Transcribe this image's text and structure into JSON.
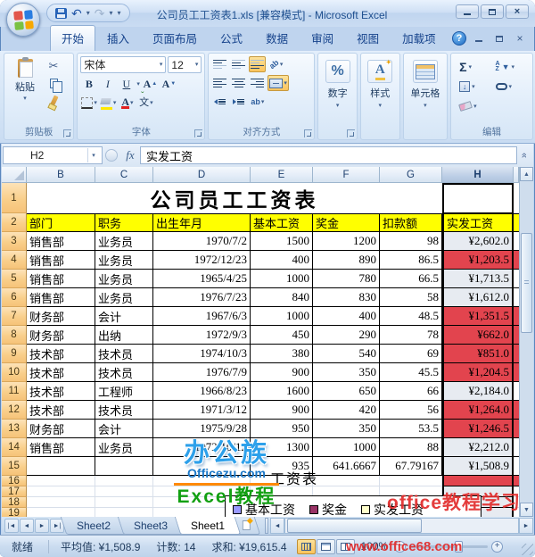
{
  "window": {
    "title": "公司员工工资表1.xls [兼容模式] - Microsoft Excel"
  },
  "ribbon_tabs": [
    {
      "label": "开始",
      "active": true
    },
    {
      "label": "插入"
    },
    {
      "label": "页面布局"
    },
    {
      "label": "公式"
    },
    {
      "label": "数据"
    },
    {
      "label": "审阅"
    },
    {
      "label": "视图"
    },
    {
      "label": "加载项"
    }
  ],
  "ribbon": {
    "clipboard": {
      "label": "剪贴板",
      "paste": "粘贴"
    },
    "font": {
      "label": "字体",
      "name": "宋体",
      "size": "12"
    },
    "alignment": {
      "label": "对齐方式"
    },
    "number": {
      "label": "数字"
    },
    "styles": {
      "label": "样式"
    },
    "cells": {
      "label": "单元格"
    },
    "editing": {
      "label": "编辑"
    }
  },
  "formula_bar": {
    "name_box": "H2",
    "fx": "fx",
    "content": "实发工资"
  },
  "sheet": {
    "columns": [
      "B",
      "C",
      "D",
      "E",
      "F",
      "G",
      "H"
    ],
    "selected_column": "H",
    "title": "公司员工工资表",
    "headers": [
      "部门",
      "职务",
      "出生年月",
      "基本工资",
      "奖金",
      "扣款额",
      "实发工资"
    ],
    "grid_rows": [
      {
        "n": "1",
        "kind": "title"
      },
      {
        "n": "2",
        "kind": "header"
      },
      {
        "n": "3",
        "kind": "data",
        "cells": [
          "销售部",
          "业务员",
          "1970/7/2",
          "1500",
          "1200",
          "98",
          "¥2,602.0"
        ],
        "net_red": false
      },
      {
        "n": "4",
        "kind": "data",
        "cells": [
          "销售部",
          "业务员",
          "1972/12/23",
          "400",
          "890",
          "86.5",
          "¥1,203.5"
        ],
        "net_red": true
      },
      {
        "n": "5",
        "kind": "data",
        "cells": [
          "销售部",
          "业务员",
          "1965/4/25",
          "1000",
          "780",
          "66.5",
          "¥1,713.5"
        ],
        "net_red": false
      },
      {
        "n": "6",
        "kind": "data",
        "cells": [
          "销售部",
          "业务员",
          "1976/7/23",
          "840",
          "830",
          "58",
          "¥1,612.0"
        ],
        "net_red": false
      },
      {
        "n": "7",
        "kind": "data",
        "cells": [
          "财务部",
          "会计",
          "1967/6/3",
          "1000",
          "400",
          "48.5",
          "¥1,351.5"
        ],
        "net_red": true
      },
      {
        "n": "8",
        "kind": "data",
        "cells": [
          "财务部",
          "出纳",
          "1972/9/3",
          "450",
          "290",
          "78",
          "¥662.0"
        ],
        "net_red": true
      },
      {
        "n": "9",
        "kind": "data",
        "cells": [
          "技术部",
          "技术员",
          "1974/10/3",
          "380",
          "540",
          "69",
          "¥851.0"
        ],
        "net_red": true
      },
      {
        "n": "10",
        "kind": "data",
        "cells": [
          "技术部",
          "技术员",
          "1976/7/9",
          "900",
          "350",
          "45.5",
          "¥1,204.5"
        ],
        "net_red": true
      },
      {
        "n": "11",
        "kind": "data",
        "cells": [
          "技术部",
          "工程师",
          "1966/8/23",
          "1600",
          "650",
          "66",
          "¥2,184.0"
        ],
        "net_red": false
      },
      {
        "n": "12",
        "kind": "data",
        "cells": [
          "技术部",
          "技术员",
          "1971/3/12",
          "900",
          "420",
          "56",
          "¥1,264.0"
        ],
        "net_red": true
      },
      {
        "n": "13",
        "kind": "data",
        "cells": [
          "财务部",
          "会计",
          "1975/9/28",
          "950",
          "350",
          "53.5",
          "¥1,246.5"
        ],
        "net_red": true
      },
      {
        "n": "14",
        "kind": "data",
        "cells": [
          "销售部",
          "业务员",
          "1972/10/12",
          "1300",
          "1000",
          "88",
          "¥2,212.0"
        ],
        "net_red": false
      },
      {
        "n": "15",
        "kind": "data",
        "cells": [
          "",
          "",
          "",
          "935",
          "641.6667",
          "67.79167",
          "¥1,508.9"
        ],
        "net_red": false
      },
      {
        "n": "16",
        "kind": "empty",
        "net_red": true
      },
      {
        "n": "17",
        "kind": "empty"
      },
      {
        "n": "18",
        "kind": "empty"
      },
      {
        "n": "19",
        "kind": "empty"
      }
    ]
  },
  "colors": {
    "header_fill": "#ffff00",
    "conditional_red_fill": "#e2444e",
    "selection_tint": "#e7ebf1"
  },
  "watermarks": {
    "officezu": {
      "brand": "办公族",
      "domain": "Officezu.com",
      "tagline": "Excel教程"
    },
    "red": {
      "line1": "office教程学习网",
      "line2": "www.office68.com"
    }
  },
  "chart": {
    "title_fragment": "工资表",
    "legend": [
      {
        "label": "基本工资",
        "color": "#9999ff"
      },
      {
        "label": "奖金",
        "color": "#993366"
      },
      {
        "label": "实发工资",
        "color": "#ffffcc"
      }
    ]
  },
  "sheet_tabs": [
    {
      "label": "Sheet2",
      "active": false
    },
    {
      "label": "Sheet3",
      "active": false
    },
    {
      "label": "Sheet1",
      "active": true
    }
  ],
  "status_bar": {
    "mode": "就绪",
    "average_label": "平均值: ¥1,508.9",
    "count_label": "计数: 14",
    "sum_label": "求和: ¥19,615.4",
    "zoom": "100%"
  }
}
